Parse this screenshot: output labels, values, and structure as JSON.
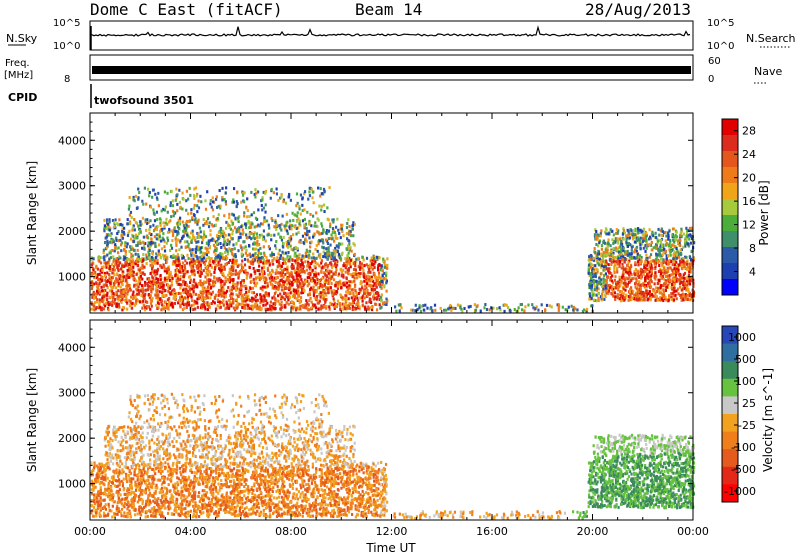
{
  "header": {
    "station": "Dome C East (fitACF)",
    "beam": "Beam 14",
    "date": "28/Aug/2013"
  },
  "strip_labels": {
    "nsky": "N.Sky",
    "nsky_ticks": [
      "10^5",
      "10^0"
    ],
    "nsearch": "N.Search",
    "nsearch_ticks": [
      "10^5",
      "10^0"
    ],
    "freq": "Freq.",
    "freq_unit": "[MHz]",
    "freq_ticks": [
      "8"
    ],
    "nave": "Nave",
    "nave_ticks": [
      "60",
      "0"
    ],
    "cpid": "CPID",
    "cpid_name": "twofsound 3501"
  },
  "colors": {
    "power": [
      "#0000ff",
      "#1e3fb0",
      "#2b5aa8",
      "#3f8f6b",
      "#4cae3a",
      "#a7c93c",
      "#f0a41a",
      "#ee7a1a",
      "#e4561c",
      "#dc2c1e",
      "#e10000"
    ],
    "velocity": [
      "#2747b8",
      "#2f6ea0",
      "#3a8a5c",
      "#66c23f",
      "#c8c8c8",
      "#f2a21f",
      "#f07f1b",
      "#e55a1d",
      "#e52718",
      "#ff0000"
    ]
  },
  "chart_data": [
    {
      "type": "heatmap",
      "panel": "power",
      "xlabel": "",
      "ylabel": "Slant Range [km]",
      "x_ticks": [
        "00:00",
        "04:00",
        "08:00",
        "12:00",
        "16:00",
        "20:00",
        "00:00"
      ],
      "y_ticks": [
        1000,
        2000,
        3000,
        4000
      ],
      "xlim": [
        0,
        24
      ],
      "ylim": [
        200,
        4600
      ],
      "colorbar_label": "Power [dB]",
      "colorbar_ticks": [
        "4",
        "8",
        "12",
        "16",
        "20",
        "24",
        "28"
      ],
      "colorbar_range": [
        0,
        30
      ]
    },
    {
      "type": "heatmap",
      "panel": "velocity",
      "xlabel": "Time UT",
      "ylabel": "Slant Range [km]",
      "x_ticks": [
        "00:00",
        "04:00",
        "08:00",
        "12:00",
        "16:00",
        "20:00",
        "00:00"
      ],
      "y_ticks": [
        1000,
        2000,
        3000,
        4000
      ],
      "xlim": [
        0,
        24
      ],
      "ylim": [
        200,
        4600
      ],
      "colorbar_label": "Velocity [m s^-1]",
      "colorbar_ticks": [
        "1000",
        "500",
        "100",
        "25",
        "-25",
        "-100",
        "-500",
        "-1000"
      ]
    }
  ]
}
